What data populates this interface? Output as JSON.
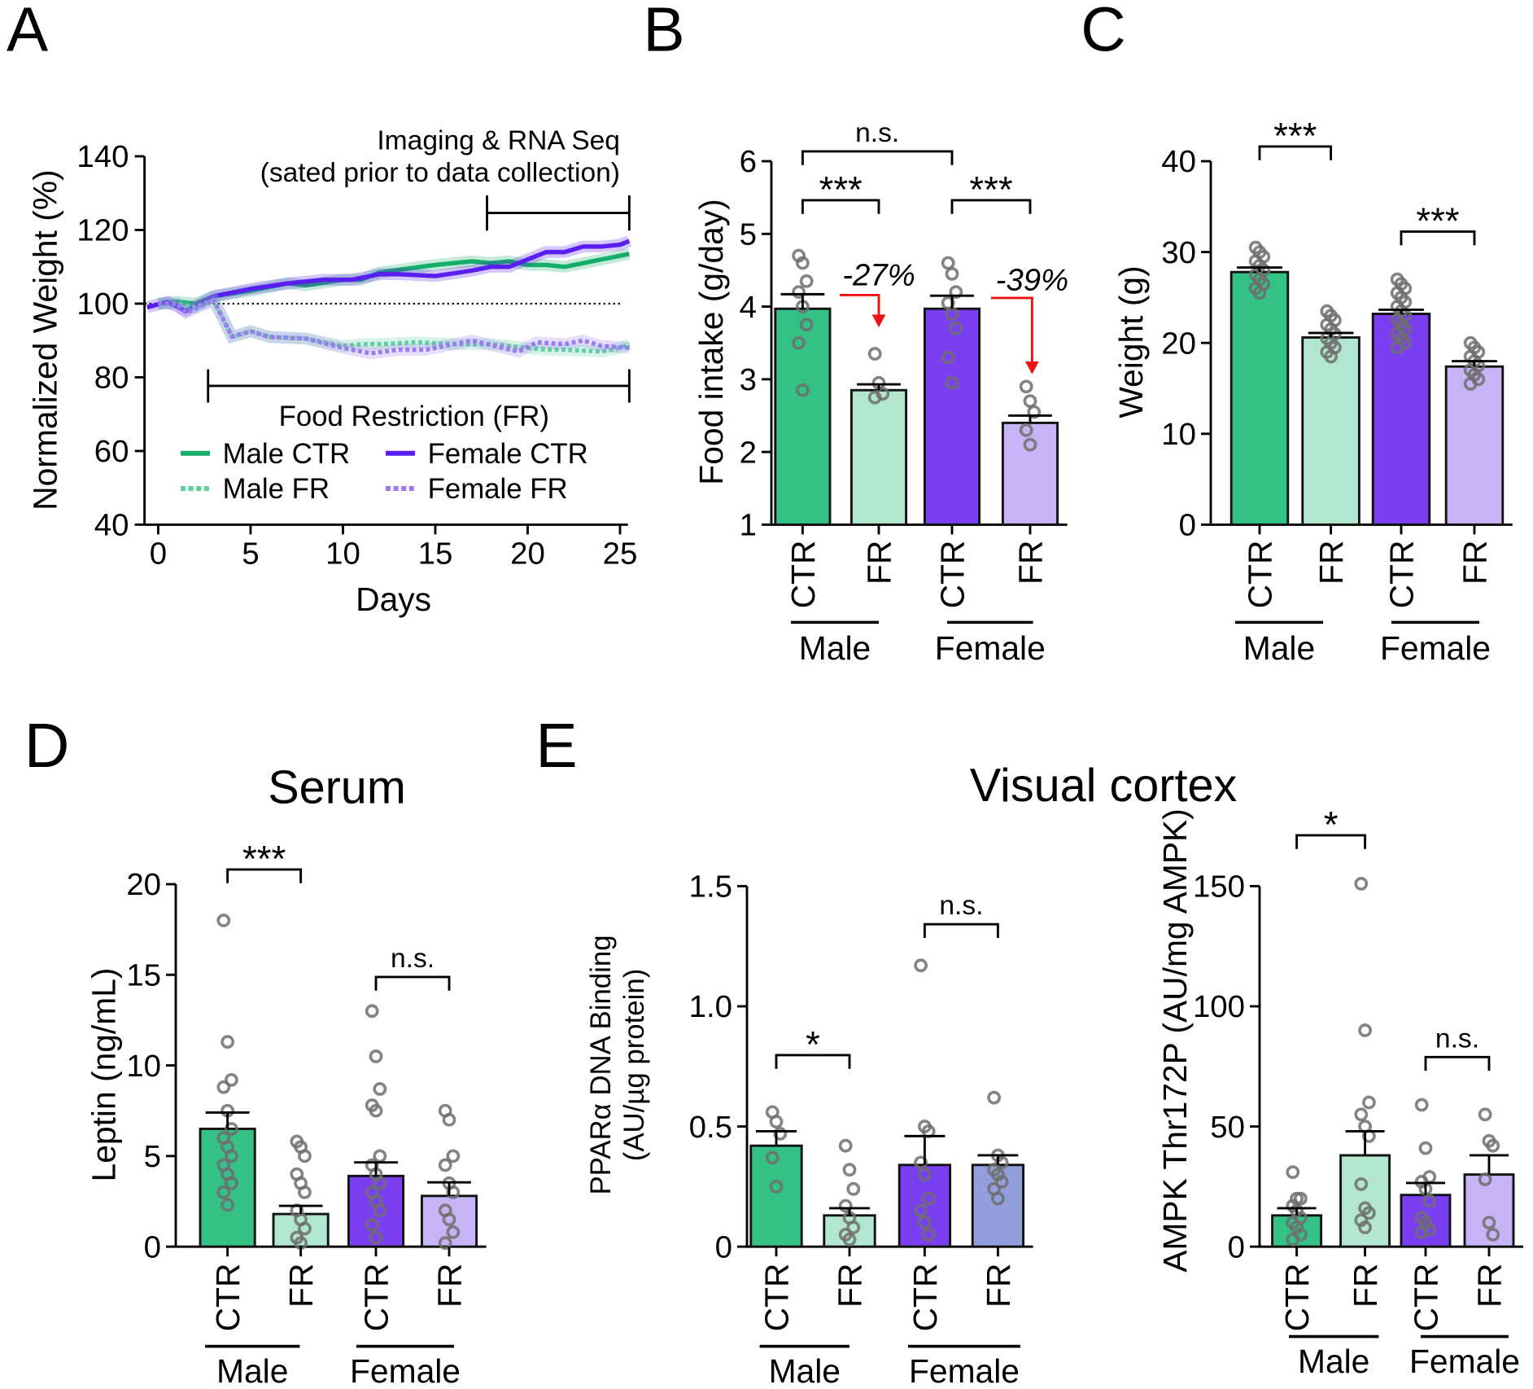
{
  "panel_letters": [
    "A",
    "B",
    "C",
    "D",
    "E"
  ],
  "titles": {
    "serum": "Serum",
    "visual_cortex": "Visual cortex"
  },
  "colors": {
    "male_ctr": "#33c186",
    "male_fr": "#b2e6cf",
    "female_ctr": "#7b3ff2",
    "female_fr": "#c7b4f6",
    "female_fr_ppar": "#929fdc",
    "male_line": "#16ad6a",
    "female_line": "#5a1ef0",
    "male_fr_line": "#5fd0a0",
    "female_fr_line": "#9a7bf0",
    "annotation_red": "#ee1111"
  },
  "chart_data": [
    {
      "id": "A",
      "type": "line",
      "xlabel": "Days",
      "ylabel": "Normalized Weight (%)",
      "xlim": [
        -0.6,
        25.5
      ],
      "ylim": [
        40,
        140
      ],
      "xticks": [
        "0",
        "5",
        "10",
        "15",
        "20",
        "25"
      ],
      "yticks": [
        "40",
        "60",
        "80",
        "100",
        "120",
        "140"
      ],
      "reference_line": 100,
      "annotations": {
        "imaging_line1": "Imaging & RNA Seq",
        "imaging_line2": "(sated prior to data collection)",
        "imaging_range": [
          17.8,
          25.5
        ],
        "fr_label": "Food Restriction (FR)",
        "fr_range": [
          2.7,
          25.5
        ]
      },
      "legend": "lower-middle",
      "series": [
        {
          "name": "Male CTR",
          "style": "solid",
          "x": [
            0,
            1,
            2,
            3,
            5,
            7,
            8,
            10,
            11,
            12,
            15,
            17,
            18,
            19,
            20,
            21,
            22,
            23,
            24,
            25.5
          ],
          "y": [
            100,
            100.5,
            100,
            102,
            103.5,
            105.5,
            105,
            106.5,
            106.5,
            108.5,
            110.5,
            111.5,
            111,
            111.5,
            110.5,
            110.5,
            110,
            111,
            112,
            113.5
          ]
        },
        {
          "name": "Female CTR",
          "style": "solid",
          "x": [
            -0.6,
            0.5,
            1.5,
            3,
            5,
            7,
            9,
            10.5,
            12,
            13,
            15,
            17,
            18,
            19,
            20,
            21,
            22,
            23,
            24,
            25,
            25.5
          ],
          "y": [
            99,
            100.5,
            98,
            102,
            104,
            105.5,
            106.5,
            106.5,
            108,
            108,
            107.5,
            109,
            110,
            110,
            112,
            114,
            114,
            115.5,
            115.5,
            116,
            117
          ]
        },
        {
          "name": "Male FR",
          "style": "dotted",
          "x": [
            0,
            1,
            2,
            3,
            4,
            5,
            6,
            8,
            10,
            11,
            12,
            14,
            16,
            18,
            20,
            21,
            22,
            24,
            25,
            25.5
          ],
          "y": [
            100,
            100,
            99,
            101,
            91,
            92.5,
            91,
            90.5,
            88.5,
            89,
            89,
            89.5,
            89,
            89,
            88,
            87.5,
            87.5,
            87,
            88,
            89
          ]
        },
        {
          "name": "Female FR",
          "style": "dotted",
          "x": [
            0,
            1,
            1.5,
            3,
            4,
            5,
            6,
            8,
            10,
            11.5,
            13,
            14.5,
            16,
            17,
            19.5,
            20.5,
            22,
            23,
            24,
            25.5
          ],
          "y": [
            100,
            100,
            97.5,
            101,
            91,
            92.5,
            91,
            90.5,
            88,
            86.5,
            87.5,
            87.5,
            89,
            90,
            87,
            89.5,
            89,
            90,
            88.5,
            88
          ]
        }
      ]
    },
    {
      "id": "B",
      "type": "bar",
      "ylabel": "Food intake (g/day)",
      "ylim": [
        1,
        6
      ],
      "yticks": [
        "1",
        "2",
        "3",
        "4",
        "5",
        "6"
      ],
      "categories": [
        "CTR",
        "FR",
        "CTR",
        "FR"
      ],
      "groups": [
        "Male",
        "Female"
      ],
      "values": [
        3.97,
        2.85,
        3.97,
        2.4
      ],
      "sem": [
        0.2,
        0.08,
        0.18,
        0.1
      ],
      "points": [
        [
          4.7,
          4.6,
          4.35,
          4.2,
          4.0,
          3.75,
          3.5,
          2.85
        ],
        [
          3.35,
          2.95,
          2.8,
          2.75
        ],
        [
          4.6,
          4.45,
          4.2,
          4.05,
          3.9,
          3.7,
          3.3,
          2.95
        ],
        [
          2.9,
          2.7,
          2.55,
          2.3,
          2.1
        ]
      ],
      "significance": [
        {
          "from": 0,
          "to": 1,
          "label": "***"
        },
        {
          "from": 2,
          "to": 3,
          "label": "***"
        },
        {
          "from": 0,
          "to": 2,
          "label": "n.s."
        }
      ],
      "percent_changes": [
        "-27%",
        "-39%"
      ]
    },
    {
      "id": "C",
      "type": "bar",
      "ylabel": "Weight (g)",
      "ylim": [
        0,
        40
      ],
      "yticks": [
        "0",
        "10",
        "20",
        "30",
        "40"
      ],
      "categories": [
        "CTR",
        "FR",
        "CTR",
        "FR"
      ],
      "groups": [
        "Male",
        "Female"
      ],
      "values": [
        27.8,
        20.6,
        23.2,
        17.4
      ],
      "sem": [
        0.5,
        0.5,
        0.45,
        0.6
      ],
      "points": [
        [
          30.5,
          30,
          29.5,
          29,
          28.5,
          28,
          27.5,
          27,
          26.5,
          26,
          25.5
        ],
        [
          23.5,
          23,
          22.5,
          22,
          21.5,
          21,
          20.5,
          20,
          19.5,
          19,
          18.5
        ],
        [
          27,
          26.5,
          26,
          25.5,
          25,
          24.5,
          24,
          23.5,
          23,
          22.5,
          22,
          21.5,
          21,
          20.5,
          20,
          19.5
        ],
        [
          20,
          19.5,
          19,
          18.5,
          18,
          17.5,
          17,
          16.5,
          16,
          15.5
        ]
      ],
      "significance": [
        {
          "from": 0,
          "to": 1,
          "label": "***"
        },
        {
          "from": 2,
          "to": 3,
          "label": "***"
        }
      ]
    },
    {
      "id": "D",
      "type": "bar",
      "title": "Serum",
      "ylabel": "Leptin (ng/mL)",
      "ylim": [
        0,
        20
      ],
      "yticks": [
        "0",
        "5",
        "10",
        "15",
        "20"
      ],
      "categories": [
        "CTR",
        "FR",
        "CTR",
        "FR"
      ],
      "groups": [
        "Male",
        "Female"
      ],
      "values": [
        6.5,
        1.8,
        3.9,
        2.8
      ],
      "sem": [
        0.9,
        0.45,
        0.75,
        0.75
      ],
      "points": [
        [
          18,
          11.3,
          9.2,
          8.8,
          7.5,
          6.5,
          6,
          5.5,
          5,
          4.5,
          4,
          3.5,
          3,
          2.3
        ],
        [
          5.8,
          5.5,
          5,
          4,
          3.5,
          3,
          2,
          1.5,
          1,
          0.5,
          0.2
        ],
        [
          13,
          10.5,
          8.7,
          7.8,
          7.5,
          5,
          4.5,
          4,
          3.5,
          3,
          2.5,
          2,
          1.2,
          0.5
        ],
        [
          7.5,
          7,
          5,
          4.5,
          3.5,
          3,
          2,
          1.5,
          0.8,
          0.2
        ]
      ],
      "significance": [
        {
          "from": 0,
          "to": 1,
          "label": "***"
        },
        {
          "from": 2,
          "to": 3,
          "label": "n.s."
        }
      ]
    },
    {
      "id": "E1",
      "type": "bar",
      "title": "Visual cortex",
      "ylabel_line1": "PPARα DNA Binding",
      "ylabel_line2": "(AU/µg protein)",
      "ylim": [
        0,
        1.5
      ],
      "yticks": [
        "0",
        "0.5",
        "1.0",
        "1.5"
      ],
      "categories": [
        "CTR",
        "FR",
        "CTR",
        "FR"
      ],
      "groups": [
        "Male",
        "Female"
      ],
      "values": [
        0.42,
        0.13,
        0.34,
        0.34
      ],
      "sem": [
        0.06,
        0.03,
        0.12,
        0.04
      ],
      "points": [
        [
          0.56,
          0.52,
          0.47,
          0.37,
          0.25
        ],
        [
          0.42,
          0.32,
          0.24,
          0.17,
          0.12,
          0.08,
          0.05,
          0.03
        ],
        [
          1.17,
          0.5,
          0.48,
          0.35,
          0.3,
          0.2,
          0.15,
          0.1,
          0.05
        ],
        [
          0.62,
          0.38,
          0.35,
          0.32,
          0.3,
          0.27,
          0.24,
          0.2
        ]
      ],
      "significance": [
        {
          "from": 0,
          "to": 1,
          "label": "*"
        },
        {
          "from": 2,
          "to": 3,
          "label": "n.s."
        }
      ]
    },
    {
      "id": "E2",
      "type": "bar",
      "ylabel": "AMPK Thr172P (AU/mg AMPK)",
      "ylim": [
        0,
        150
      ],
      "yticks": [
        "0",
        "50",
        "100",
        "150"
      ],
      "categories": [
        "CTR",
        "FR",
        "CTR",
        "FR"
      ],
      "groups": [
        "Male",
        "Female"
      ],
      "values": [
        13,
        38,
        21.5,
        30
      ],
      "sem": [
        3,
        10,
        5,
        8
      ],
      "points": [
        [
          31,
          20,
          20,
          17,
          15,
          12,
          10,
          8,
          5,
          3
        ],
        [
          151,
          90,
          60,
          55,
          50,
          46,
          26,
          16,
          14,
          11,
          8
        ],
        [
          59,
          41,
          29,
          27,
          24,
          19,
          12,
          10,
          7,
          6
        ],
        [
          55,
          44,
          42,
          28,
          10,
          5
        ]
      ],
      "significance": [
        {
          "from": 0,
          "to": 1,
          "label": "*"
        },
        {
          "from": 2,
          "to": 3,
          "label": "n.s."
        }
      ]
    }
  ]
}
